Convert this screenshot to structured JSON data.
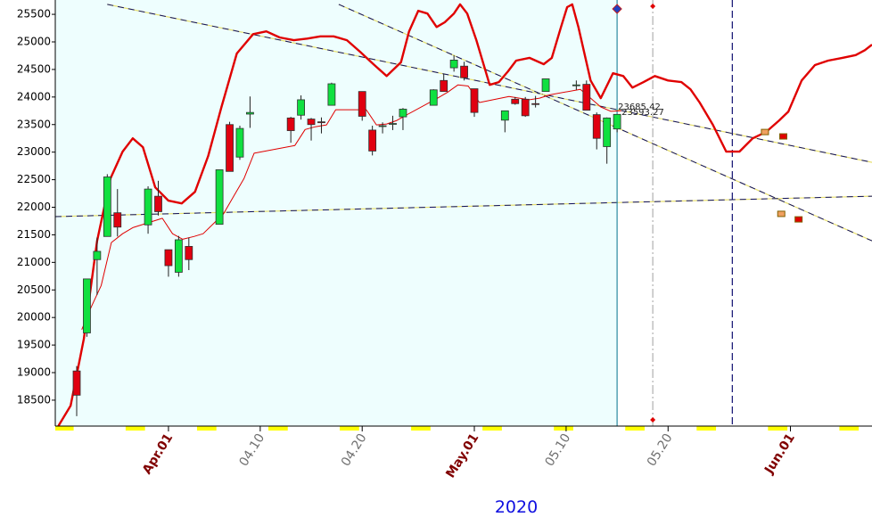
{
  "chart_data": {
    "type": "candlestick",
    "xlabel": "2020",
    "xlim": [
      80.9,
      161.0
    ],
    "ylim": [
      18030,
      25760
    ],
    "yticks": [
      18500,
      19000,
      19500,
      20000,
      20500,
      21000,
      21500,
      22000,
      22500,
      23000,
      23500,
      24000,
      24500,
      25000,
      25500
    ],
    "xticks": [
      {
        "value": 92,
        "label": "Apr.01"
      },
      {
        "value": 101,
        "label": "04.10"
      },
      {
        "value": 111,
        "label": "04.20"
      },
      {
        "value": 122,
        "label": "May.01"
      },
      {
        "value": 131,
        "label": "05.10"
      },
      {
        "value": 141,
        "label": "05.20"
      },
      {
        "value": 153,
        "label": "Jun.01"
      }
    ],
    "x": [
      83,
      84,
      85,
      86,
      87,
      90,
      91,
      92,
      93,
      94,
      97,
      98,
      99,
      100,
      104,
      105,
      106,
      107,
      108,
      111,
      112,
      113,
      114,
      115,
      118,
      119,
      120,
      121,
      122,
      125,
      126,
      127,
      128,
      129,
      132,
      133,
      134,
      135,
      136
    ],
    "open": [
      19030,
      19720,
      21050,
      21470,
      21900,
      21680,
      22200,
      21230,
      20820,
      21290,
      21690,
      23500,
      22910,
      23690,
      23620,
      23670,
      23600,
      23550,
      23850,
      24100,
      23400,
      23480,
      23510,
      23640,
      23850,
      24300,
      24530,
      24560,
      24150,
      23580,
      23960,
      23960,
      23880,
      24100,
      24210,
      24230,
      23680,
      23100,
      23420
    ],
    "high": [
      19120,
      20700,
      21450,
      22600,
      22330,
      22380,
      22480,
      21230,
      21480,
      21450,
      22680,
      23550,
      23480,
      24010,
      23640,
      24030,
      23620,
      23630,
      24260,
      24100,
      23480,
      23540,
      23660,
      23800,
      24140,
      24420,
      24760,
      24640,
      24150,
      23750,
      24000,
      24000,
      24020,
      24330,
      24300,
      24300,
      23720,
      23630,
      23690
    ],
    "low": [
      18210,
      19650,
      20410,
      21470,
      21470,
      21520,
      21850,
      20740,
      20740,
      20860,
      21690,
      22650,
      22860,
      23440,
      23170,
      23590,
      23210,
      23340,
      23850,
      23570,
      22940,
      23340,
      23400,
      23400,
      23850,
      24100,
      24460,
      24300,
      23640,
      23360,
      23860,
      23640,
      23810,
      24100,
      24130,
      23760,
      23050,
      22790,
      23360
    ],
    "close": [
      18590,
      20700,
      21200,
      22550,
      21640,
      22330,
      21920,
      20940,
      21410,
      21050,
      22680,
      22650,
      23430,
      23720,
      23390,
      23950,
      23500,
      23540,
      24240,
      23650,
      23020,
      23480,
      23520,
      23780,
      24130,
      24100,
      24670,
      24350,
      23720,
      23750,
      23880,
      23660,
      23870,
      24330,
      24220,
      23760,
      23250,
      23620,
      23685
    ],
    "lines": [
      {
        "color": "#e00000",
        "x": [
          81.2,
          82.4,
          83.7,
          85.0,
          86.3,
          87.5,
          88.5,
          89.5,
          90.7,
          92.0,
          93.3,
          94.6,
          95.9,
          97.2,
          98.7,
          100.3,
          101.6,
          102.9,
          104.3,
          105.6,
          106.9,
          108.2,
          109.5,
          110.8,
          112.1,
          113.4,
          114.8,
          115.6,
          116.5,
          117.4,
          118.3,
          119.1,
          120.0,
          120.6,
          121.3,
          122.2,
          123.5,
          124.4,
          125.3,
          126.1,
          127.4,
          128.8,
          129.6,
          130.5,
          131.1,
          131.6,
          132.2,
          133.4,
          134.4,
          135.6,
          136.6,
          137.5,
          138.6,
          139.7,
          141.0,
          142.3,
          143.2,
          144.1,
          145.4,
          146.7,
          148.0,
          149.3,
          150.6,
          151.9,
          152.8,
          154.1,
          155.4,
          156.7,
          158.1,
          159.4,
          160.3,
          161.0
        ],
        "values": [
          18030,
          18400,
          19610,
          21390,
          22520,
          23010,
          23250,
          23090,
          22360,
          22120,
          22070,
          22280,
          22930,
          23820,
          24790,
          25140,
          25190,
          25080,
          25030,
          25060,
          25100,
          25100,
          25030,
          24820,
          24595,
          24380,
          24630,
          25190,
          25565,
          25515,
          25270,
          25355,
          25515,
          25680,
          25515,
          25030,
          24220,
          24270,
          24465,
          24660,
          24710,
          24595,
          24710,
          25270,
          25630,
          25680,
          25270,
          24300,
          23980,
          24430,
          24380,
          24170,
          24270,
          24380,
          24300,
          24270,
          24140,
          23900,
          23495,
          23010,
          23010,
          23250,
          23365,
          23575,
          23735,
          24300,
          24580,
          24660,
          24710,
          24760,
          24850,
          24950
        ]
      },
      {
        "color": "#e00000",
        "x": [
          83.5,
          84.4,
          85.4,
          86.4,
          87.5,
          88.5,
          91.4,
          92.4,
          93.4,
          94.5,
          95.4,
          97.4,
          98.4,
          99.4,
          100.4,
          104.4,
          105.4,
          106.4,
          107.5,
          108.4,
          111.4,
          112.4,
          113.4,
          114.4,
          115.5,
          118.4,
          119.4,
          120.4,
          121.4,
          122.5,
          125.4,
          126.4,
          127.4,
          128.4,
          129.4,
          132.4,
          133.4,
          134.4,
          135.4,
          136.4
        ],
        "values": [
          19780,
          20180,
          20580,
          21360,
          21520,
          21630,
          21800,
          21520,
          21420,
          21470,
          21520,
          21880,
          22200,
          22520,
          22980,
          23120,
          23410,
          23460,
          23495,
          23770,
          23770,
          23495,
          23510,
          23575,
          23690,
          23980,
          24090,
          24220,
          24200,
          23900,
          24010,
          23980,
          23950,
          23980,
          24040,
          24140,
          23980,
          23820,
          23740,
          23750
        ]
      }
    ],
    "trendlines": [
      {
        "x": [
          86.0,
          161.0
        ],
        "values": [
          25680,
          22815
        ]
      },
      {
        "x": [
          108.7,
          161.0
        ],
        "values": [
          25680,
          21390
        ]
      },
      {
        "x": [
          80.9,
          161.0
        ],
        "values": [
          21830,
          22200
        ]
      }
    ],
    "vlines": [
      136,
      139.5,
      147.3
    ],
    "projections": {
      "x": [
        150.5,
        152.3,
        152.1,
        153.8
      ],
      "values": [
        23365,
        23285,
        21880,
        21780
      ]
    },
    "annotations": [
      "23685.42",
      "23593.27"
    ]
  }
}
